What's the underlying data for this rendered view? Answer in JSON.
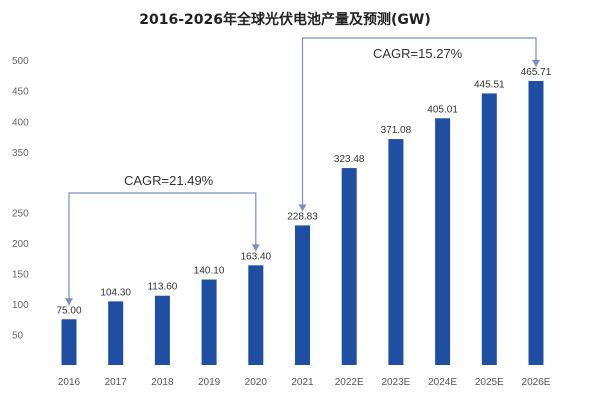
{
  "chart_data": {
    "type": "bar",
    "title": "2016-2026年全球光伏电池产量及预测(GW)",
    "categories": [
      "2016",
      "2017",
      "2018",
      "2019",
      "2020",
      "2021",
      "2022E",
      "2023E",
      "2024E",
      "2025E",
      "2026E"
    ],
    "values": [
      75.0,
      104.3,
      113.6,
      140.1,
      163.4,
      228.83,
      323.48,
      371.08,
      405.01,
      445.51,
      465.71
    ],
    "value_labels": [
      "75.00",
      "104.30",
      "113.60",
      "140.10",
      "163.40",
      "228.83",
      "323.48",
      "371.08",
      "405.01",
      "445.51",
      "465.71"
    ],
    "yticks": [
      "50",
      "100",
      "150",
      "200",
      "250",
      "350",
      "400",
      "450",
      "500"
    ],
    "ylim": [
      0,
      500
    ],
    "grid": false,
    "bar_color": "#1f4fa3",
    "annotations": [
      {
        "text": "CAGR=21.49%",
        "from": "2016",
        "to": "2020"
      },
      {
        "text": "CAGR=15.27%",
        "from": "2021",
        "to": "2026E"
      }
    ],
    "xlabel": "",
    "ylabel": ""
  }
}
